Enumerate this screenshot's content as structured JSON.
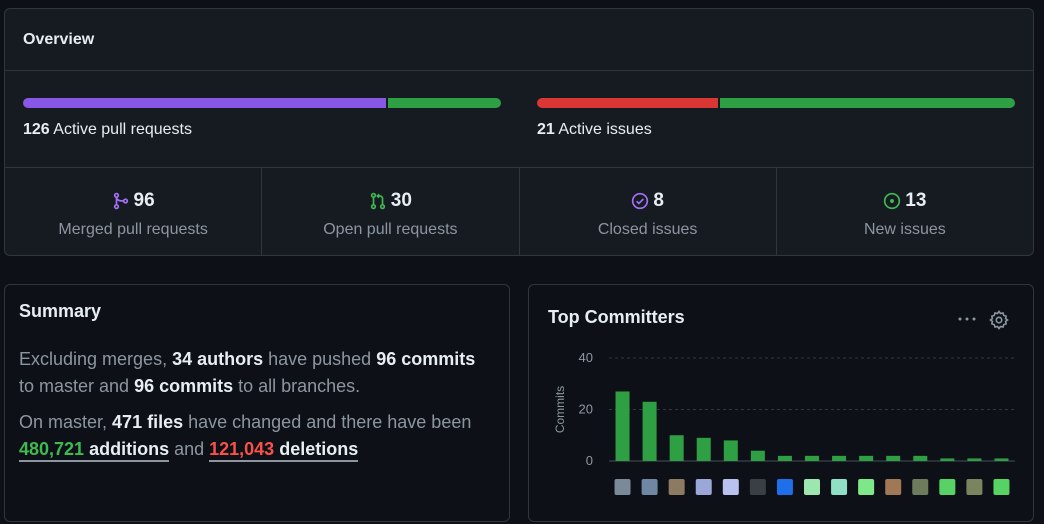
{
  "overview": {
    "title": "Overview",
    "pull_requests": {
      "count": "126",
      "label": "Active pull requests",
      "merged_fraction": 0.762,
      "open_fraction": 0.238
    },
    "issues": {
      "count": "21",
      "label": "Active issues",
      "closed_fraction": 0.381,
      "new_fraction": 0.619
    },
    "stats": [
      {
        "value": "96",
        "label": "Merged pull requests",
        "icon": "merge-icon",
        "color": "#a371f7"
      },
      {
        "value": "30",
        "label": "Open pull requests",
        "icon": "pull-request-icon",
        "color": "#3fb950"
      },
      {
        "value": "8",
        "label": "Closed issues",
        "icon": "issue-closed-icon",
        "color": "#a371f7"
      },
      {
        "value": "13",
        "label": "New issues",
        "icon": "issue-opened-icon",
        "color": "#3fb950"
      }
    ]
  },
  "summary": {
    "title": "Summary",
    "l1_a": "Excluding merges, ",
    "authors": "34 authors",
    "l1_b": " have pushed ",
    "commits_master": "96 commits",
    "l1_c": " to master and ",
    "commits_all": "96 commits",
    "l1_d": " to all branches.",
    "l2_a": "On master, ",
    "files": "471 files",
    "l2_b": " have changed and there have been ",
    "additions_num": "480,721",
    "additions_word": " additions",
    "l2_c": " and ",
    "deletions_num": "121,043",
    "deletions_word": " deletions"
  },
  "committers": {
    "title": "Top Committers",
    "menu_icon": "kebab-horizontal-icon",
    "settings_icon": "gear-icon"
  },
  "chart_data": {
    "type": "bar",
    "title": "Top Committers",
    "ylabel": "Commits",
    "xlabel": "",
    "ylim": [
      0,
      40
    ],
    "yticks": [
      "0",
      "20",
      "40"
    ],
    "values": [
      27,
      23,
      10,
      9,
      8,
      4,
      2,
      2,
      2,
      2,
      2,
      2,
      1,
      1,
      1
    ],
    "bar_color": "#2ea043",
    "grid": true,
    "avatar_colors": [
      "#7a8a99",
      "#6f87a3",
      "#8c7a62",
      "#9aa7d8",
      "#b9c2ee",
      "#3a3f46",
      "#1f6feb",
      "#9ee6b0",
      "#8fe0c4",
      "#7ee787",
      "#a07855",
      "#6e7c5e",
      "#56d364",
      "#7a8560",
      "#56d364"
    ]
  },
  "colors": {
    "merged": "#8957e5",
    "open": "#2ea043",
    "closed": "#da3633",
    "new": "#2ea043"
  }
}
